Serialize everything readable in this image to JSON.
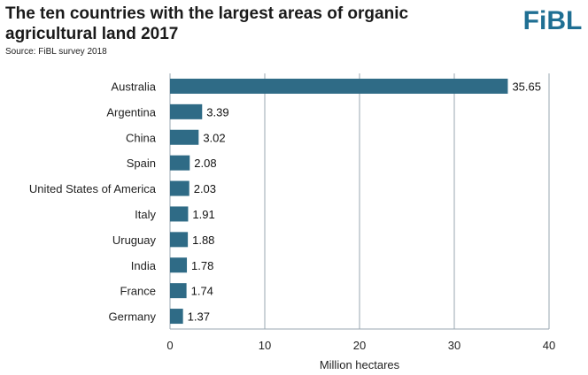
{
  "header": {
    "title": "The ten countries with the largest areas of organic agricultural land 2017",
    "source": "Source: FiBL survey 2018",
    "logo_text": "FiBL"
  },
  "colors": {
    "bar": "#2f6b86",
    "grid": "#9aa7b0",
    "logo": "#1f6f93"
  },
  "chart_data": {
    "type": "bar",
    "orientation": "horizontal",
    "title": "The ten countries with the largest areas of organic agricultural land 2017",
    "xlabel": "Million hectares",
    "ylabel": "",
    "xlim": [
      0,
      40
    ],
    "xticks": [
      0,
      10,
      20,
      30,
      40
    ],
    "grid": "vertical",
    "categories": [
      "Australia",
      "Argentina",
      "China",
      "Spain",
      "United States of America",
      "Italy",
      "Uruguay",
      "India",
      "France",
      "Germany"
    ],
    "values": [
      35.65,
      3.39,
      3.02,
      2.08,
      2.03,
      1.91,
      1.88,
      1.78,
      1.74,
      1.37
    ],
    "value_labels": [
      "35.65",
      "3.39",
      "3.02",
      "2.08",
      "2.03",
      "1.91",
      "1.88",
      "1.78",
      "1.74",
      "1.37"
    ]
  }
}
